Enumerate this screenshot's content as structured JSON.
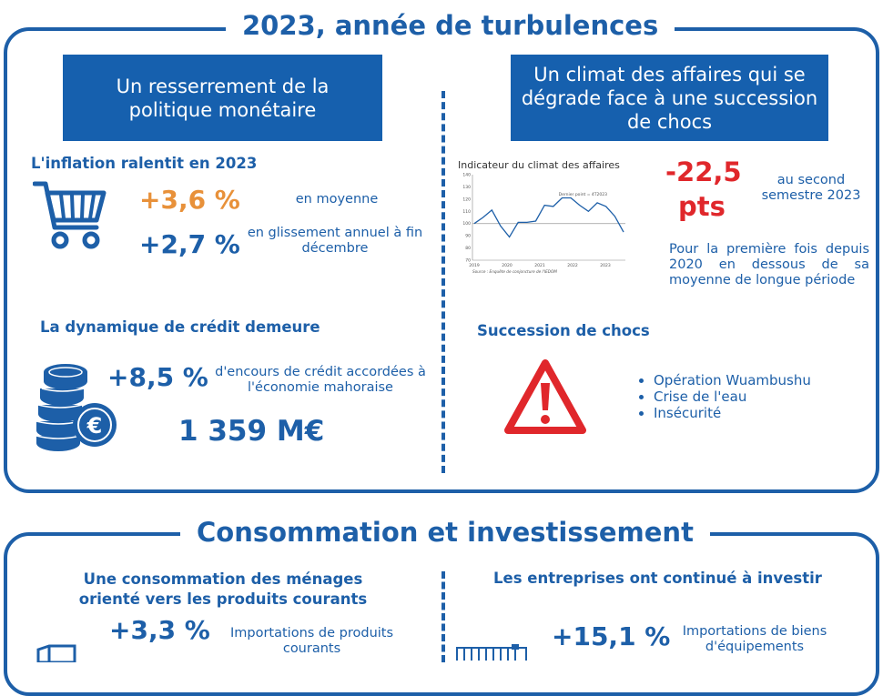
{
  "section1": {
    "title": "2023, année de turbulences",
    "left_banner": "Un resserrement de la politique monétaire",
    "right_banner": "Un climat des affaires qui se dégrade face à une succession de chocs",
    "inflation": {
      "heading": "L'inflation ralentit en 2023",
      "value1": "+3,6 %",
      "label1": "en moyenne",
      "value2": "+2,7 %",
      "label2": "en glissement annuel à fin décembre",
      "icon": "shopping-cart-icon"
    },
    "credit": {
      "heading": "La dynamique de crédit demeure",
      "value": "+8,5 %",
      "label": "d'encours de crédit accordées à l'économie mahoraise",
      "amount": "1 359 M€",
      "icon": "coins-euro-icon"
    },
    "climate": {
      "value_line1": "-22,5",
      "value_line2": "pts",
      "value_label": "au second semestre 2023",
      "paragraph": "Pour la première fois depuis 2020 en dessous de sa moyenne de longue période"
    },
    "shocks": {
      "heading": "Succession de chocs",
      "icon": "warning-triangle-icon",
      "items": [
        "Opération Wuambushu",
        "Crise de l'eau",
        "Insécurité"
      ]
    }
  },
  "chart_data": {
    "type": "line",
    "title": "Indicateur du climat des affaires",
    "annotation": "Dernier point = 4T2023",
    "source": "Source : Enquête de conjoncture de l'IEDOM",
    "x_ticks": [
      "2019",
      "2020",
      "2021",
      "2022",
      "2023"
    ],
    "y_ticks": [
      "70",
      "80",
      "90",
      "100",
      "110",
      "120",
      "130",
      "140"
    ],
    "ylim": [
      70,
      140
    ],
    "reference_line": 100,
    "series": [
      {
        "values": [
          100,
          105,
          111,
          98,
          89,
          101,
          101,
          102,
          115,
          114,
          121,
          121,
          115,
          110,
          117,
          114,
          106,
          93
        ]
      }
    ]
  },
  "section2": {
    "title": "Consommation et investissement",
    "left_heading_line1": "Une consommation des ménages",
    "left_heading_line2": "orienté vers les produits courants",
    "left_value": "+3,3 %",
    "left_label": "Importations de produits courants",
    "right_heading": "Les entreprises ont continué à investir",
    "right_value": "+15,1 %",
    "right_label": "Importations de biens d'équipements"
  },
  "colors": {
    "primary": "#1d5fa8",
    "banner": "#1660ae",
    "orange": "#e8913a",
    "red": "#e0272b"
  }
}
